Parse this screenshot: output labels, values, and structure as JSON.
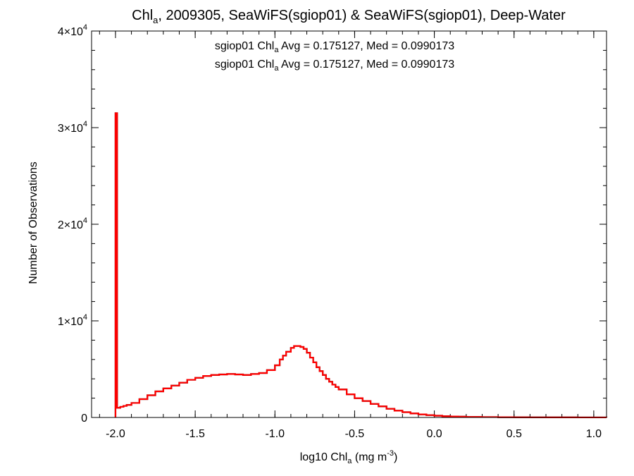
{
  "chart_data": {
    "type": "step-histogram",
    "title": {
      "pre": "Chl",
      "sub": "a",
      "post": ", 2009305, SeaWiFS(sgiop01) & SeaWiFS(sgiop01), Deep-Water"
    },
    "xlabel": {
      "pre": "log10 Chl",
      "sub": "a",
      "mid": " (mg m",
      "sup": "-3",
      "post": ")"
    },
    "ylabel": "Number of Observations",
    "xlim": [
      -2.15,
      1.08
    ],
    "ylim": [
      0,
      40000
    ],
    "x_ticks": [
      {
        "value": -2.0,
        "label": "-2.0"
      },
      {
        "value": -1.5,
        "label": "-1.5"
      },
      {
        "value": -1.0,
        "label": "-1.0"
      },
      {
        "value": -0.5,
        "label": "-0.5"
      },
      {
        "value": 0.0,
        "label": "0.0"
      },
      {
        "value": 0.5,
        "label": "0.5"
      },
      {
        "value": 1.0,
        "label": "1.0"
      }
    ],
    "y_ticks": [
      {
        "value": 0,
        "mant": "0",
        "exp": ""
      },
      {
        "value": 10000,
        "mant": "1×10",
        "exp": "4"
      },
      {
        "value": 20000,
        "mant": "2×10",
        "exp": "4"
      },
      {
        "value": 30000,
        "mant": "3×10",
        "exp": "4"
      },
      {
        "value": 40000,
        "mant": "4×10",
        "exp": "4"
      }
    ],
    "x_minor_step": 0.1,
    "y_minor_step": 2000,
    "annotations": [
      {
        "pre": "sgiop01 Chl",
        "sub": "a",
        "post": " Avg = 0.175127, Med = 0.0990173",
        "color": "#000000"
      },
      {
        "pre": "sgiop01 Chl",
        "sub": "a",
        "post": " Avg = 0.175127, Med = 0.0990173",
        "color": "#ff0000"
      }
    ],
    "series": [
      {
        "color": "#000000",
        "x": [
          -2.0,
          -2.0,
          -1.99,
          -1.97,
          -1.95,
          -1.93,
          -1.9,
          -1.85,
          -1.8,
          -1.75,
          -1.7,
          -1.65,
          -1.6,
          -1.55,
          -1.5,
          -1.45,
          -1.4,
          -1.35,
          -1.3,
          -1.25,
          -1.2,
          -1.15,
          -1.1,
          -1.05,
          -1.0,
          -0.97,
          -0.95,
          -0.93,
          -0.9,
          -0.88,
          -0.86,
          -0.84,
          -0.82,
          -0.8,
          -0.78,
          -0.76,
          -0.74,
          -0.72,
          -0.7,
          -0.68,
          -0.66,
          -0.64,
          -0.62,
          -0.6,
          -0.55,
          -0.5,
          -0.45,
          -0.4,
          -0.35,
          -0.3,
          -0.25,
          -0.2,
          -0.15,
          -0.1,
          -0.05,
          0.0,
          0.05,
          0.1,
          0.15,
          0.2,
          0.3,
          0.4,
          0.5,
          0.6,
          0.7,
          0.8,
          0.9,
          1.0,
          1.08
        ],
        "y": [
          0,
          31500,
          1000,
          1100,
          1200,
          1300,
          1500,
          1900,
          2300,
          2700,
          3000,
          3300,
          3600,
          3900,
          4100,
          4300,
          4400,
          4450,
          4500,
          4450,
          4400,
          4500,
          4600,
          4900,
          5400,
          6000,
          6400,
          6800,
          7200,
          7400,
          7400,
          7300,
          7100,
          6700,
          6200,
          5700,
          5200,
          4800,
          4400,
          4000,
          3700,
          3400,
          3150,
          2900,
          2400,
          2000,
          1700,
          1400,
          1150,
          900,
          700,
          550,
          420,
          320,
          240,
          180,
          130,
          100,
          80,
          60,
          40,
          28,
          20,
          14,
          10,
          7,
          5,
          3,
          2
        ]
      },
      {
        "color": "#ff0000",
        "x": [
          -2.0,
          -2.0,
          -1.99,
          -1.97,
          -1.95,
          -1.93,
          -1.9,
          -1.85,
          -1.8,
          -1.75,
          -1.7,
          -1.65,
          -1.6,
          -1.55,
          -1.5,
          -1.45,
          -1.4,
          -1.35,
          -1.3,
          -1.25,
          -1.2,
          -1.15,
          -1.1,
          -1.05,
          -1.0,
          -0.97,
          -0.95,
          -0.93,
          -0.9,
          -0.88,
          -0.86,
          -0.84,
          -0.82,
          -0.8,
          -0.78,
          -0.76,
          -0.74,
          -0.72,
          -0.7,
          -0.68,
          -0.66,
          -0.64,
          -0.62,
          -0.6,
          -0.55,
          -0.5,
          -0.45,
          -0.4,
          -0.35,
          -0.3,
          -0.25,
          -0.2,
          -0.15,
          -0.1,
          -0.05,
          0.0,
          0.05,
          0.1,
          0.15,
          0.2,
          0.3,
          0.4,
          0.5,
          0.6,
          0.7,
          0.8,
          0.9,
          1.0,
          1.08
        ],
        "y": [
          0,
          31500,
          1000,
          1100,
          1200,
          1300,
          1500,
          1900,
          2300,
          2700,
          3000,
          3300,
          3600,
          3900,
          4100,
          4300,
          4400,
          4450,
          4500,
          4450,
          4400,
          4500,
          4600,
          4900,
          5400,
          6000,
          6400,
          6800,
          7200,
          7400,
          7400,
          7300,
          7100,
          6700,
          6200,
          5700,
          5200,
          4800,
          4400,
          4000,
          3700,
          3400,
          3150,
          2900,
          2400,
          2000,
          1700,
          1400,
          1150,
          900,
          700,
          550,
          420,
          320,
          240,
          180,
          130,
          100,
          80,
          60,
          40,
          28,
          20,
          14,
          10,
          7,
          5,
          3,
          2
        ]
      }
    ]
  }
}
